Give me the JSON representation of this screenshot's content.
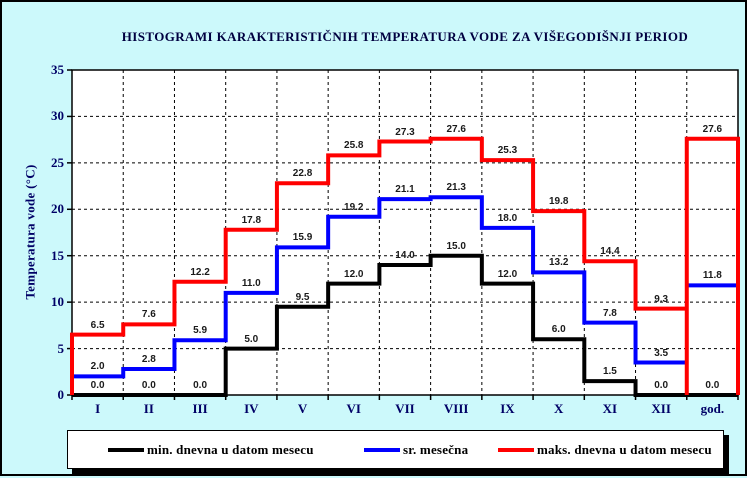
{
  "title": "HISTOGRAMI KARAKTERISTIČNIH TEMPERATURA VODE ZA VIŠEGODIŠNJI PERIOD",
  "y_axis": {
    "label": "Temperatura vode (°C)",
    "min": 0,
    "max": 35,
    "tick_step": 5,
    "ticks": [
      0,
      5,
      10,
      15,
      20,
      25,
      30,
      35
    ]
  },
  "x_axis": {
    "categories": [
      "I",
      "II",
      "III",
      "IV",
      "V",
      "VI",
      "VII",
      "VIII",
      "IX",
      "X",
      "XI",
      "XII",
      "god."
    ]
  },
  "legend": {
    "items": [
      {
        "label": "min. dnevna u datom mesecu",
        "color": "#000000"
      },
      {
        "label": "sr. mesečna",
        "color": "#0000ff"
      },
      {
        "label": "maks. dnevna u datom mesecu",
        "color": "#ff0000"
      }
    ]
  },
  "colors": {
    "background": "#ccf9fb",
    "plot_background": "#ffffff",
    "gridline": "#000000",
    "axis_text": "#000066",
    "title_text": "#000040",
    "data_label": "#1a1a1a",
    "series_min": "#000000",
    "series_mean": "#0000ff",
    "series_max": "#ff0000"
  },
  "chart_data": {
    "type": "line",
    "style": "step-histogram",
    "title": "HISTOGRAMI KARAKTERISTIČNIH TEMPERATURA VODE ZA VIŠEGODIŠNJI PERIOD",
    "xlabel": "",
    "ylabel": "Temperatura vode (°C)",
    "ylim": [
      0,
      35
    ],
    "grid": true,
    "legend_position": "bottom",
    "categories": [
      "I",
      "II",
      "III",
      "IV",
      "V",
      "VI",
      "VII",
      "VIII",
      "IX",
      "X",
      "XI",
      "XII",
      "god."
    ],
    "series": [
      {
        "name": "min. dnevna u datom mesecu",
        "color": "#000000",
        "values": [
          0.0,
          0.0,
          0.0,
          5.0,
          9.5,
          12.0,
          14.0,
          15.0,
          12.0,
          6.0,
          1.5,
          0.0,
          0.0
        ]
      },
      {
        "name": "sr. mesečna",
        "color": "#0000ff",
        "values": [
          2.0,
          2.8,
          5.9,
          11.0,
          15.9,
          19.2,
          21.1,
          21.3,
          18.0,
          13.2,
          7.8,
          3.5,
          11.8
        ]
      },
      {
        "name": "maks. dnevna u datom mesecu",
        "color": "#ff0000",
        "values": [
          6.5,
          7.6,
          12.2,
          17.8,
          22.8,
          25.8,
          27.3,
          27.6,
          25.3,
          19.8,
          14.4,
          9.3,
          27.6
        ]
      }
    ]
  }
}
